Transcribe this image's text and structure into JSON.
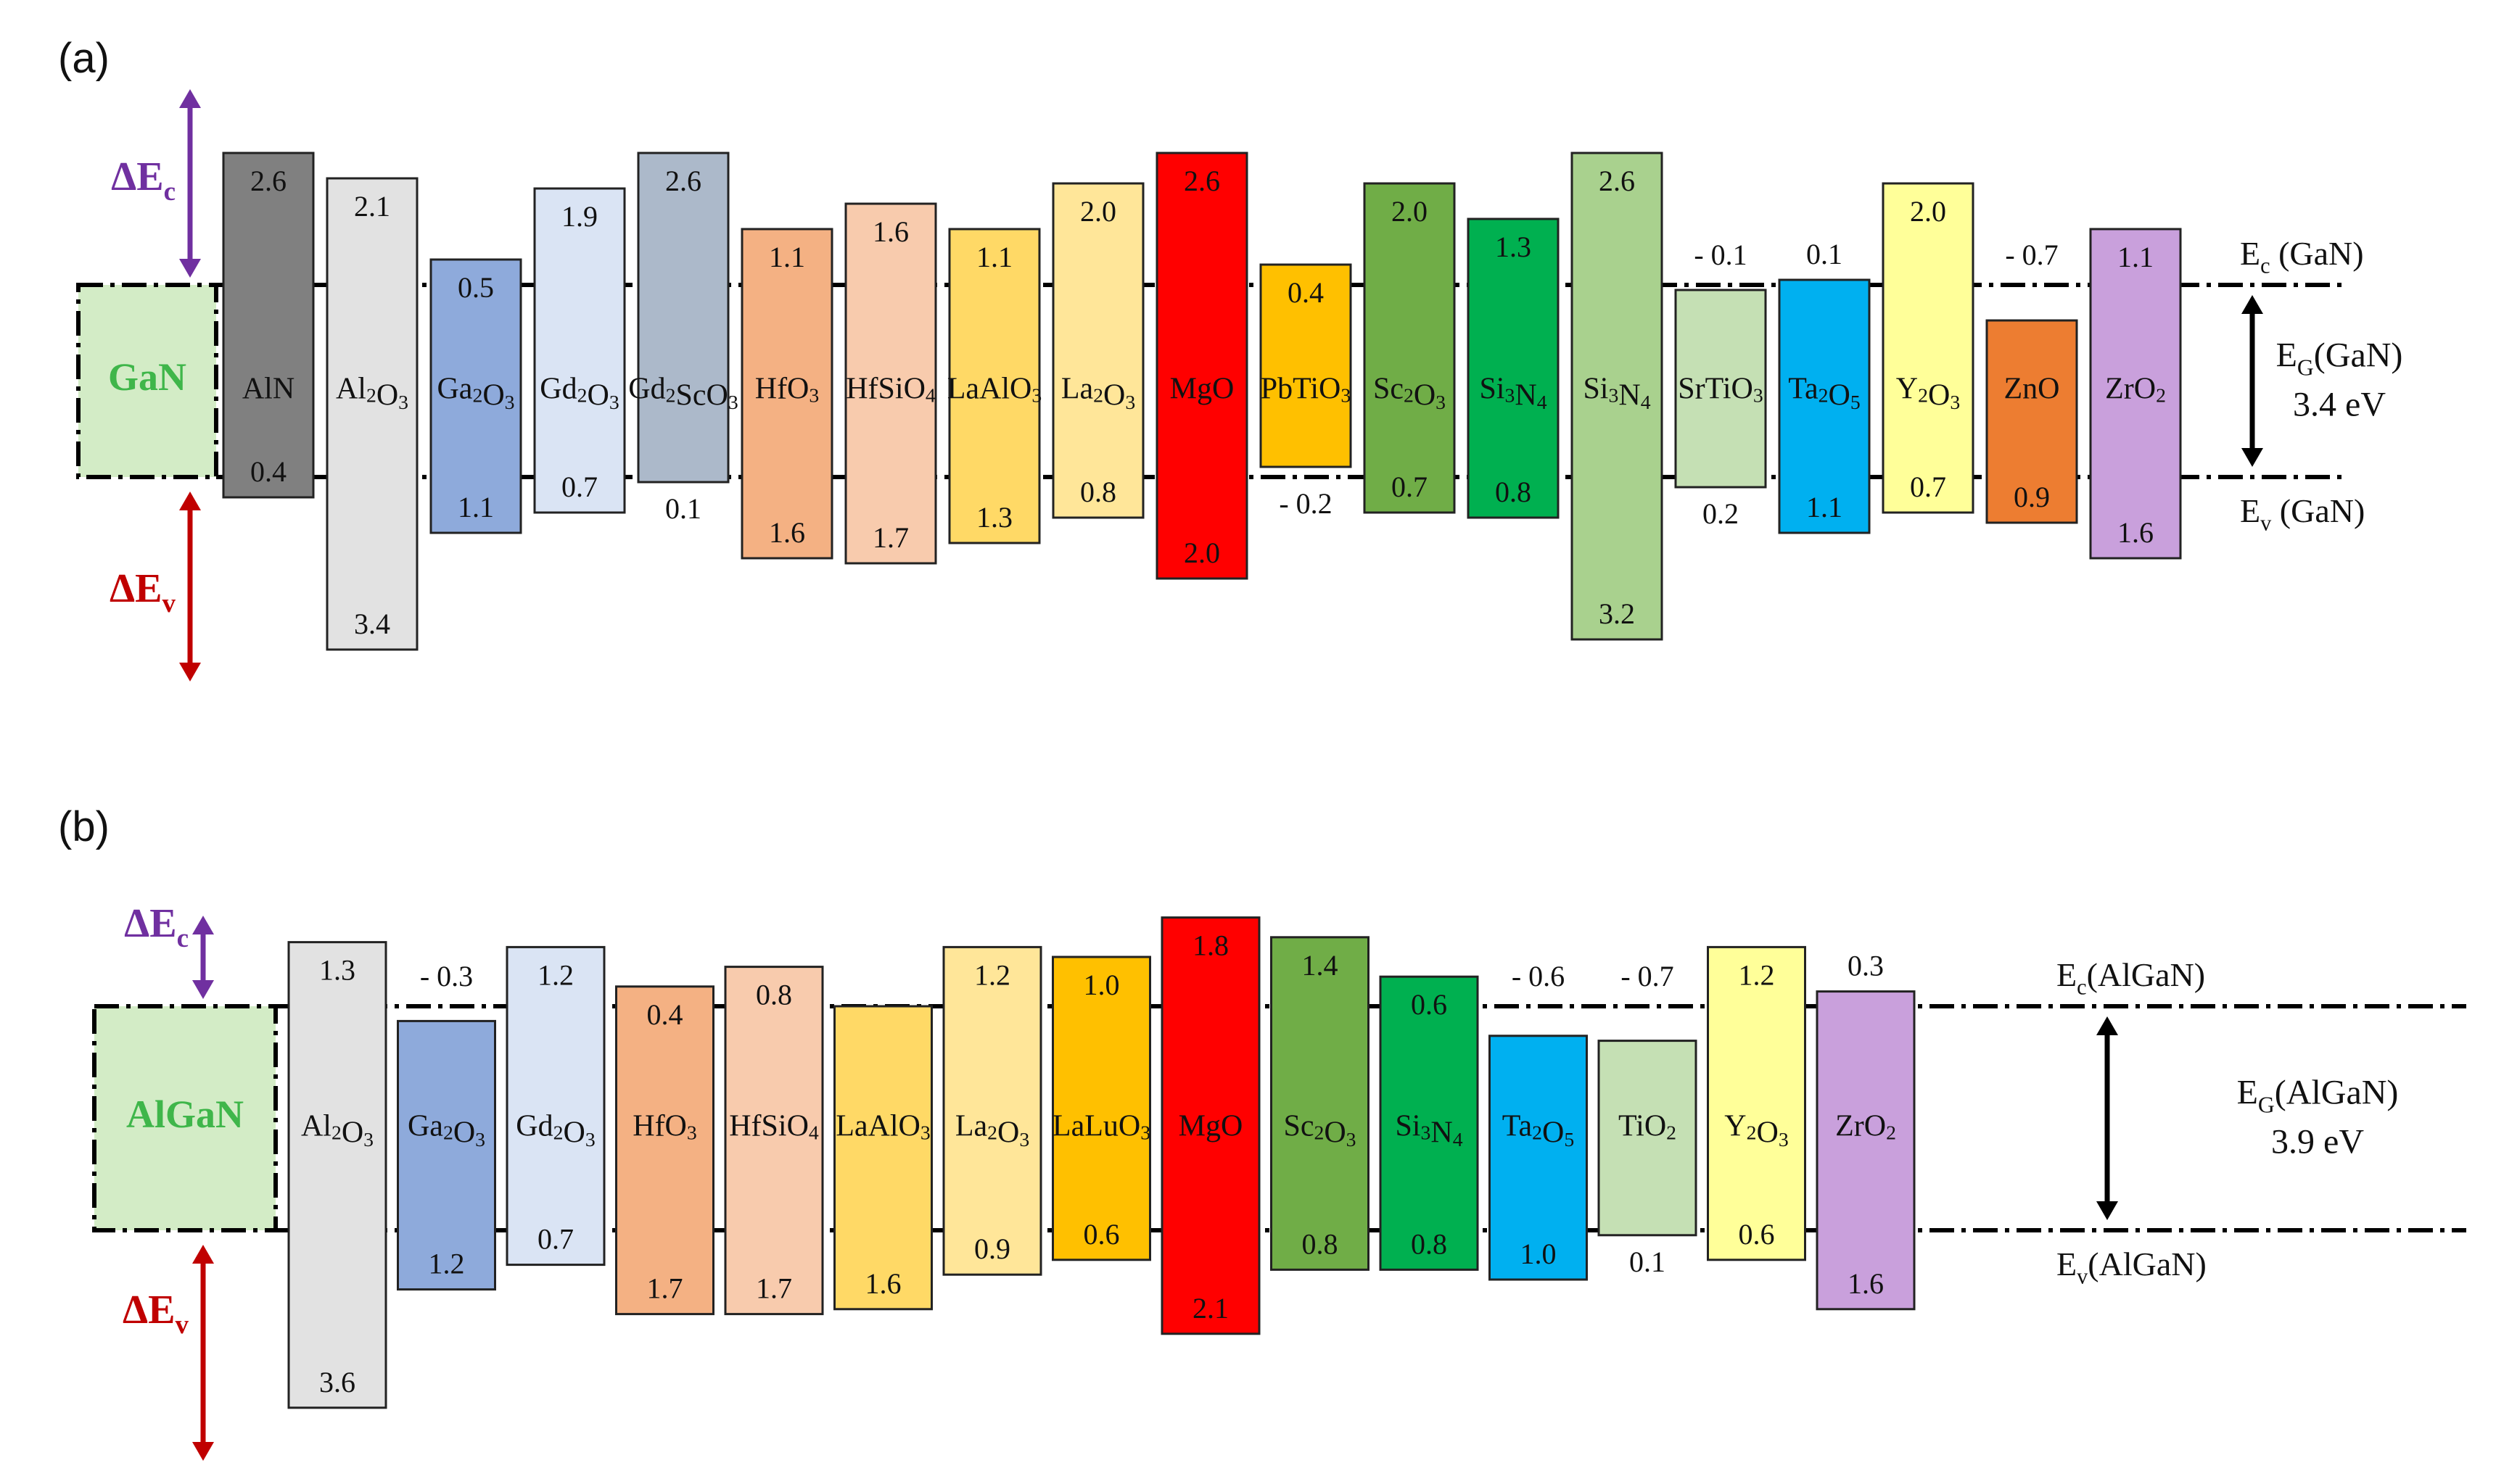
{
  "panels": [
    {
      "panel_label": "(a)",
      "reference": {
        "label": "GaN",
        "color": "#3fb64a",
        "fill": "#d3ecc6"
      },
      "delta_ec_label": "ΔE",
      "delta_ec_sub": "c",
      "delta_ev_label": "ΔE",
      "delta_ev_sub": "v",
      "ec_line_label": "E",
      "ec_line_sub": "c",
      "ec_line_rest": " (GaN)",
      "ev_line_label": "E",
      "ev_line_sub": "v",
      "ev_line_rest": " (GaN)",
      "gap_label": "E",
      "gap_sub": "G",
      "gap_rest": "(GaN)",
      "gap_value": "3.4 eV",
      "materials": [
        {
          "name": "AlN",
          "dEc": 2.6,
          "dEv": 0.4,
          "ec_text": "2.6",
          "ev_text": "0.4",
          "color": "#808080"
        },
        {
          "name": "Al2O3",
          "dEc": 2.1,
          "dEv": 3.4,
          "ec_text": "2.1",
          "ev_text": "3.4",
          "color": "#e2e2e2"
        },
        {
          "name": "Ga2O3",
          "dEc": 0.5,
          "dEv": 1.1,
          "ec_text": "0.5",
          "ev_text": "1.1",
          "color": "#8eaadb"
        },
        {
          "name": "Gd2O3",
          "dEc": 1.9,
          "dEv": 0.7,
          "ec_text": "1.9",
          "ev_text": "0.7",
          "color": "#dae4f4"
        },
        {
          "name": "Gd2ScO3",
          "dEc": 2.6,
          "dEv": 0.1,
          "ec_text": "2.6",
          "ev_text": "0.1",
          "color": "#acb9ca"
        },
        {
          "name": "HfO3",
          "dEc": 1.1,
          "dEv": 1.6,
          "ec_text": "1.1",
          "ev_text": "1.6",
          "color": "#f4b183"
        },
        {
          "name": "HfSiO4",
          "dEc": 1.6,
          "dEv": 1.7,
          "ec_text": "1.6",
          "ev_text": "1.7",
          "color": "#f8cbad"
        },
        {
          "name": "LaAlO3",
          "dEc": 1.1,
          "dEv": 1.3,
          "ec_text": "1.1",
          "ev_text": "1.3",
          "color": "#ffd966"
        },
        {
          "name": "La2O3",
          "dEc": 2.0,
          "dEv": 0.8,
          "ec_text": "2.0",
          "ev_text": "0.8",
          "color": "#ffe699"
        },
        {
          "name": "MgO",
          "dEc": 2.6,
          "dEv": 2.0,
          "ec_text": "2.6",
          "ev_text": "2.0",
          "color": "#ff0000"
        },
        {
          "name": "PbTiO3",
          "dEc": 0.4,
          "dEv": -0.2,
          "ec_text": "0.4",
          "ev_text": "- 0.2",
          "color": "#ffc000"
        },
        {
          "name": "Sc2O3",
          "dEc": 2.0,
          "dEv": 0.7,
          "ec_text": "2.0",
          "ev_text": "0.7",
          "color": "#70ad47"
        },
        {
          "name": "Si3N4",
          "dEc": 1.3,
          "dEv": 0.8,
          "ec_text": "1.3",
          "ev_text": "0.8",
          "color": "#00b050"
        },
        {
          "name": "Si3N4",
          "dEc": 2.6,
          "dEv": 3.2,
          "ec_text": "2.6",
          "ev_text": "3.2",
          "color": "#a9d18e"
        },
        {
          "name": "SrTiO3",
          "dEc": -0.1,
          "dEv": 0.2,
          "ec_text": "- 0.1",
          "ev_text": "0.2",
          "color": "#c5e0b4"
        },
        {
          "name": "Ta2O5",
          "dEc": 0.1,
          "dEv": 1.1,
          "ec_text": "0.1",
          "ev_text": "1.1",
          "color": "#00b0f0"
        },
        {
          "name": "Y2O3",
          "dEc": 2.0,
          "dEv": 0.7,
          "ec_text": "2.0",
          "ev_text": "0.7",
          "color": "#ffff99"
        },
        {
          "name": "ZnO",
          "dEc": -0.7,
          "dEv": 0.9,
          "ec_text": "- 0.7",
          "ev_text": "0.9",
          "color": "#ed7d31"
        },
        {
          "name": "ZrO2",
          "dEc": 1.1,
          "dEv": 1.6,
          "ec_text": "1.1",
          "ev_text": "1.6",
          "color": "#c9a0dc"
        }
      ]
    },
    {
      "panel_label": "(b)",
      "reference": {
        "label": "AlGaN",
        "color": "#3fb64a",
        "fill": "#d3ecc6"
      },
      "delta_ec_label": "ΔE",
      "delta_ec_sub": "c",
      "delta_ev_label": "ΔE",
      "delta_ev_sub": "v",
      "ec_line_label": "E",
      "ec_line_sub": "c",
      "ec_line_rest": "(AlGaN)",
      "ev_line_label": "E",
      "ev_line_sub": "v",
      "ev_line_rest": "(AlGaN)",
      "gap_label": "E",
      "gap_sub": "G",
      "gap_rest": "(AlGaN)",
      "gap_value": "3.9 eV",
      "materials": [
        {
          "name": "Al2O3",
          "dEc": 1.3,
          "dEv": 3.6,
          "ec_text": "1.3",
          "ev_text": "3.6",
          "color": "#e2e2e2"
        },
        {
          "name": "Ga2O3",
          "dEc": -0.3,
          "dEv": 1.2,
          "ec_text": "- 0.3",
          "ev_text": "1.2",
          "color": "#8eaadb"
        },
        {
          "name": "Gd2O3",
          "dEc": 1.2,
          "dEv": 0.7,
          "ec_text": "1.2",
          "ev_text": "0.7",
          "color": "#dae4f4"
        },
        {
          "name": "HfO3",
          "dEc": 0.4,
          "dEv": 1.7,
          "ec_text": "0.4",
          "ev_text": "1.7",
          "color": "#f4b183"
        },
        {
          "name": "HfSiO4",
          "dEc": 0.8,
          "dEv": 1.7,
          "ec_text": "0.8",
          "ev_text": "1.7",
          "color": "#f8cbad"
        },
        {
          "name": "LaAlO3",
          "dEc": 0.0,
          "dEv": 1.6,
          "ec_text": "",
          "ev_text": "1.6",
          "color": "#ffd966"
        },
        {
          "name": "La2O3",
          "dEc": 1.2,
          "dEv": 0.9,
          "ec_text": "1.2",
          "ev_text": "0.9",
          "color": "#ffe699"
        },
        {
          "name": "LaLuO3",
          "dEc": 1.0,
          "dEv": 0.6,
          "ec_text": "1.0",
          "ev_text": "0.6",
          "color": "#ffc000"
        },
        {
          "name": "MgO",
          "dEc": 1.8,
          "dEv": 2.1,
          "ec_text": "1.8",
          "ev_text": "2.1",
          "color": "#ff0000"
        },
        {
          "name": "Sc2O3",
          "dEc": 1.4,
          "dEv": 0.8,
          "ec_text": "1.4",
          "ev_text": "0.8",
          "color": "#70ad47"
        },
        {
          "name": "Si3N4",
          "dEc": 0.6,
          "dEv": 0.8,
          "ec_text": "0.6",
          "ev_text": "0.8",
          "color": "#00b050"
        },
        {
          "name": "Ta2O5",
          "dEc": -0.6,
          "dEv": 1.0,
          "ec_text": "- 0.6",
          "ev_text": "1.0",
          "color": "#00b0f0"
        },
        {
          "name": "TiO2",
          "dEc": -0.7,
          "dEv": 0.1,
          "ec_text": "- 0.7",
          "ev_text": "0.1",
          "color": "#c5e0b4"
        },
        {
          "name": "Y2O3",
          "dEc": 1.2,
          "dEv": 0.6,
          "ec_text": "1.2",
          "ev_text": "0.6",
          "color": "#ffff99"
        },
        {
          "name": "ZrO2",
          "dEc": 0.3,
          "dEv": 1.6,
          "ec_text": "0.3",
          "ev_text": "1.6",
          "color": "#c9a0dc"
        }
      ]
    }
  ],
  "colors": {
    "delta_ec": "#7030a0",
    "delta_ev": "#c00000",
    "line": "#000000"
  }
}
